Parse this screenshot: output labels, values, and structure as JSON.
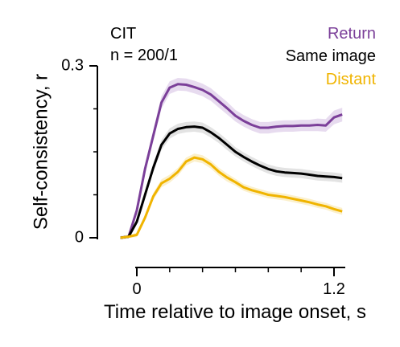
{
  "chart_data": {
    "type": "line",
    "annotation": {
      "line1": "CIT",
      "line2": "n = 200/1"
    },
    "xlabel": "Time relative to image onset, s",
    "ylabel": "Self-consistency, r",
    "xlim": [
      -0.05,
      1.25
    ],
    "ylim": [
      0,
      0.3
    ],
    "x_ticks": [
      0,
      1.2
    ],
    "x_tick_labels": [
      "0",
      "1.2"
    ],
    "y_ticks": [
      0,
      0.3
    ],
    "y_tick_labels": [
      "0",
      "0.3"
    ],
    "grid": false,
    "legend": "top-right",
    "series": [
      {
        "name": "Return",
        "color": "#7b3f99",
        "band_color": "#e7dbef",
        "x": [
          -0.1,
          -0.05,
          0,
          0.05,
          0.1,
          0.15,
          0.2,
          0.25,
          0.3,
          0.35,
          0.4,
          0.45,
          0.5,
          0.55,
          0.6,
          0.65,
          0.7,
          0.75,
          0.8,
          0.85,
          0.9,
          0.95,
          1.0,
          1.05,
          1.1,
          1.15,
          1.2,
          1.25
        ],
        "y": [
          0.0,
          0.002,
          0.048,
          0.12,
          0.178,
          0.236,
          0.262,
          0.268,
          0.267,
          0.263,
          0.258,
          0.25,
          0.238,
          0.226,
          0.213,
          0.204,
          0.197,
          0.192,
          0.192,
          0.194,
          0.195,
          0.195,
          0.196,
          0.196,
          0.197,
          0.196,
          0.21,
          0.215
        ],
        "band": [
          0.003,
          0.003,
          0.006,
          0.008,
          0.01,
          0.011,
          0.011,
          0.011,
          0.011,
          0.011,
          0.011,
          0.011,
          0.011,
          0.011,
          0.01,
          0.01,
          0.01,
          0.01,
          0.01,
          0.01,
          0.01,
          0.01,
          0.01,
          0.01,
          0.011,
          0.011,
          0.012,
          0.012
        ]
      },
      {
        "name": "Same image",
        "color": "#000000",
        "band_color": "#e3e3e3",
        "x": [
          -0.1,
          -0.05,
          0,
          0.05,
          0.1,
          0.15,
          0.2,
          0.25,
          0.3,
          0.35,
          0.4,
          0.45,
          0.5,
          0.55,
          0.6,
          0.65,
          0.7,
          0.75,
          0.8,
          0.85,
          0.9,
          0.95,
          1.0,
          1.05,
          1.1,
          1.15,
          1.2,
          1.25
        ],
        "y": [
          0.0,
          0.002,
          0.028,
          0.075,
          0.122,
          0.162,
          0.182,
          0.19,
          0.193,
          0.194,
          0.192,
          0.184,
          0.174,
          0.162,
          0.15,
          0.141,
          0.133,
          0.126,
          0.12,
          0.116,
          0.114,
          0.113,
          0.112,
          0.11,
          0.108,
          0.107,
          0.106,
          0.104
        ],
        "band": [
          0.003,
          0.003,
          0.005,
          0.007,
          0.008,
          0.009,
          0.009,
          0.009,
          0.009,
          0.009,
          0.009,
          0.009,
          0.009,
          0.009,
          0.008,
          0.008,
          0.008,
          0.008,
          0.008,
          0.008,
          0.008,
          0.008,
          0.008,
          0.008,
          0.008,
          0.008,
          0.008,
          0.008
        ]
      },
      {
        "name": "Distant",
        "color": "#f0b400",
        "band_color": "#fbf0cc",
        "x": [
          -0.1,
          -0.05,
          0,
          0.05,
          0.1,
          0.15,
          0.2,
          0.25,
          0.3,
          0.35,
          0.4,
          0.45,
          0.5,
          0.55,
          0.6,
          0.65,
          0.7,
          0.75,
          0.8,
          0.85,
          0.9,
          0.95,
          1.0,
          1.05,
          1.1,
          1.15,
          1.2,
          1.25
        ],
        "y": [
          0.0,
          0.002,
          0.005,
          0.035,
          0.072,
          0.095,
          0.103,
          0.115,
          0.133,
          0.14,
          0.137,
          0.128,
          0.115,
          0.105,
          0.097,
          0.088,
          0.083,
          0.079,
          0.075,
          0.073,
          0.071,
          0.068,
          0.065,
          0.062,
          0.058,
          0.055,
          0.05,
          0.046
        ],
        "band": [
          0.002,
          0.002,
          0.004,
          0.005,
          0.006,
          0.007,
          0.007,
          0.007,
          0.007,
          0.007,
          0.007,
          0.007,
          0.007,
          0.007,
          0.006,
          0.006,
          0.006,
          0.006,
          0.006,
          0.006,
          0.006,
          0.006,
          0.006,
          0.006,
          0.006,
          0.006,
          0.006,
          0.006
        ]
      }
    ]
  }
}
